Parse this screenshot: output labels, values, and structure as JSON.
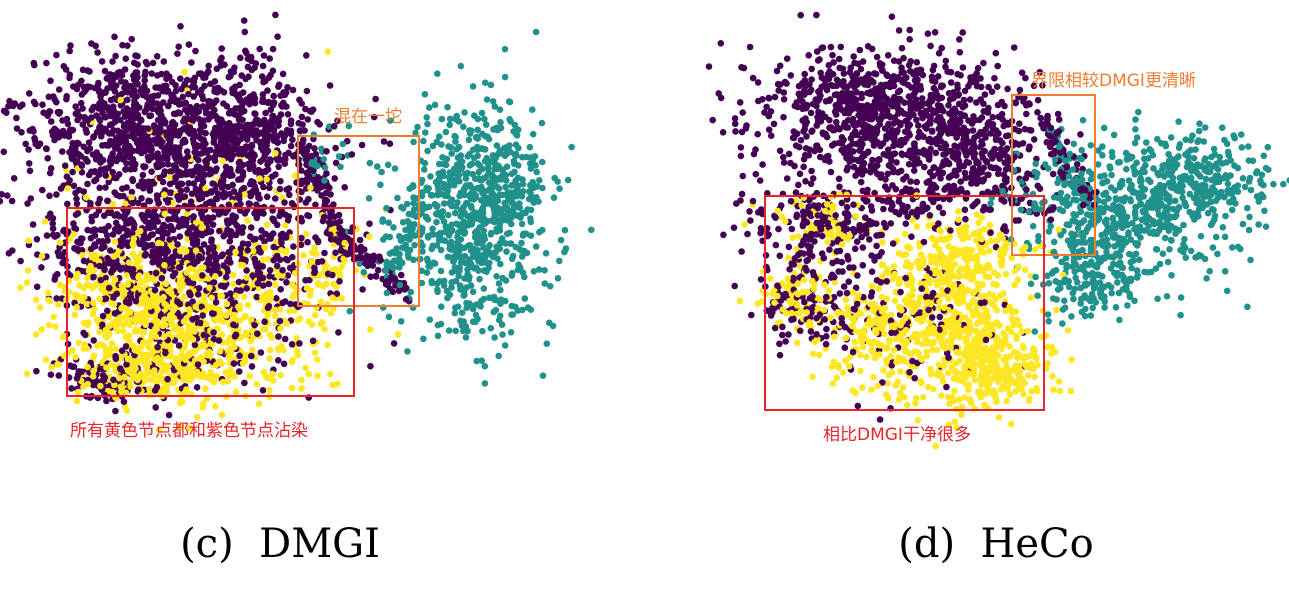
{
  "chart_data": [
    {
      "type": "scatter",
      "caption": "(c)  DMGI",
      "classes": [
        {
          "name": "",
          "color": "#440154"
        },
        {
          "name": "",
          "color": "#21918c"
        },
        {
          "name": "",
          "color": "#fde725"
        }
      ],
      "annotations": [
        {
          "text": "混在一坨",
          "color": "#ed7d31"
        },
        {
          "text": "所有黄色节点都和紫色节点沾染",
          "color": "#e8262a"
        }
      ]
    },
    {
      "type": "scatter",
      "caption": "(d)  HeCo",
      "classes": [
        {
          "name": "",
          "color": "#440154"
        },
        {
          "name": "",
          "color": "#21918c"
        },
        {
          "name": "",
          "color": "#fde725"
        }
      ],
      "annotations": [
        {
          "text": "界限相较DMGI更清晰",
          "color": "#ed7d31"
        },
        {
          "text": "相比DMGI干净很多",
          "color": "#e8262a"
        }
      ]
    }
  ]
}
